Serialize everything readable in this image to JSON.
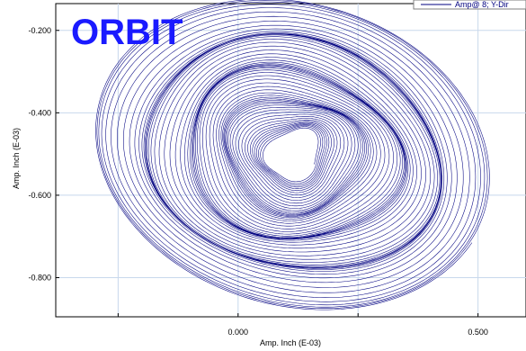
{
  "chart_data": {
    "type": "line",
    "title": "ORBIT",
    "xlabel": "Amp. Inch (E-03)",
    "ylabel": "Amp. Inch (E-03)",
    "xlim": [
      -0.38,
      0.6
    ],
    "ylim": [
      -0.895,
      -0.135
    ],
    "x_ticks": [
      "0.000",
      "0.500"
    ],
    "x_tick_values": [
      0.0,
      0.5
    ],
    "y_ticks": [
      "-0.200",
      "-0.400",
      "-0.600",
      "-0.800"
    ],
    "y_tick_values": [
      -0.2,
      -0.4,
      -0.6,
      -0.8
    ],
    "grid": true,
    "legend_position": "top-right",
    "series": [
      {
        "name": "Amp@ 8; Y-Dir",
        "color": "#000080",
        "orbit": {
          "center": [
            0.115,
            -0.5
          ],
          "outer_radii": [
            0.43,
            0.36
          ],
          "inner_radii": [
            0.05,
            0.06
          ],
          "tilt_degrees": 30,
          "loops": 60
        }
      }
    ]
  }
}
